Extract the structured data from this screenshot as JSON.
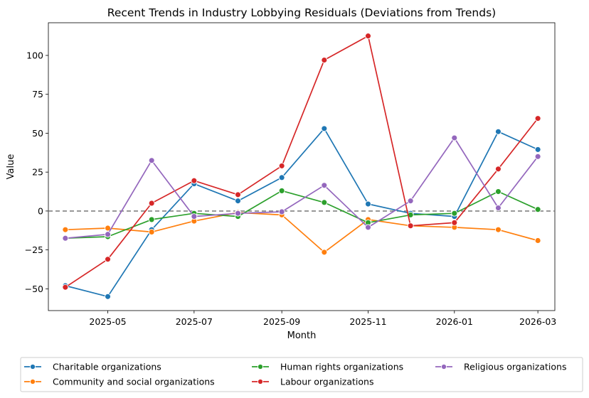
{
  "chart_data": {
    "type": "line",
    "title": "Recent Trends in Industry Lobbying Residuals (Deviations from Trends)",
    "xlabel": "Month",
    "ylabel": "Value",
    "x": [
      "2025-04",
      "2025-05",
      "2025-06",
      "2025-07",
      "2025-08",
      "2025-09",
      "2025-10",
      "2025-11",
      "2025-12",
      "2026-01",
      "2026-02",
      "2026-03"
    ],
    "x_ticks": [
      "2025-05",
      "2025-07",
      "2025-09",
      "2025-11",
      "2026-01",
      "2026-03"
    ],
    "xlim": [
      "2025-03-20",
      "2026-03-13"
    ],
    "y_ticks": [
      -50,
      -25,
      0,
      25,
      50,
      75,
      100
    ],
    "ylim": [
      -64,
      121
    ],
    "reference_line": {
      "y": 0,
      "style": "dashed",
      "color": "#808080"
    },
    "legend_position": "bottom",
    "series": [
      {
        "name": "Charitable organizations",
        "color": "#1f77b4",
        "values": [
          -48,
          -55,
          -12,
          17.5,
          6.5,
          21.5,
          53,
          4.5,
          -1.5,
          -3.5,
          51,
          39.5
        ]
      },
      {
        "name": "Community and social organizations",
        "color": "#ff7f0e",
        "values": [
          -12,
          -11,
          -13.5,
          -6.5,
          -1,
          -2.5,
          -26.5,
          -5.5,
          -9.5,
          -10.5,
          -12,
          -19
        ]
      },
      {
        "name": "Human rights organizations",
        "color": "#2ca02c",
        "values": [
          -17.5,
          -16.5,
          -5.5,
          -1.5,
          -3.5,
          13,
          5.5,
          -7.5,
          -2.5,
          -1.5,
          12.5,
          1
        ]
      },
      {
        "name": "Labour organizations",
        "color": "#d62728",
        "values": [
          -49,
          -31,
          5,
          19.5,
          10.5,
          29,
          97,
          112.5,
          -9.5,
          -7.5,
          27,
          59.5
        ]
      },
      {
        "name": "Religious organizations",
        "color": "#9467bd",
        "values": [
          -17.5,
          -15,
          32.5,
          -3.5,
          -1.5,
          -0.5,
          16.5,
          -10.5,
          6.5,
          47,
          2,
          35
        ]
      }
    ]
  }
}
